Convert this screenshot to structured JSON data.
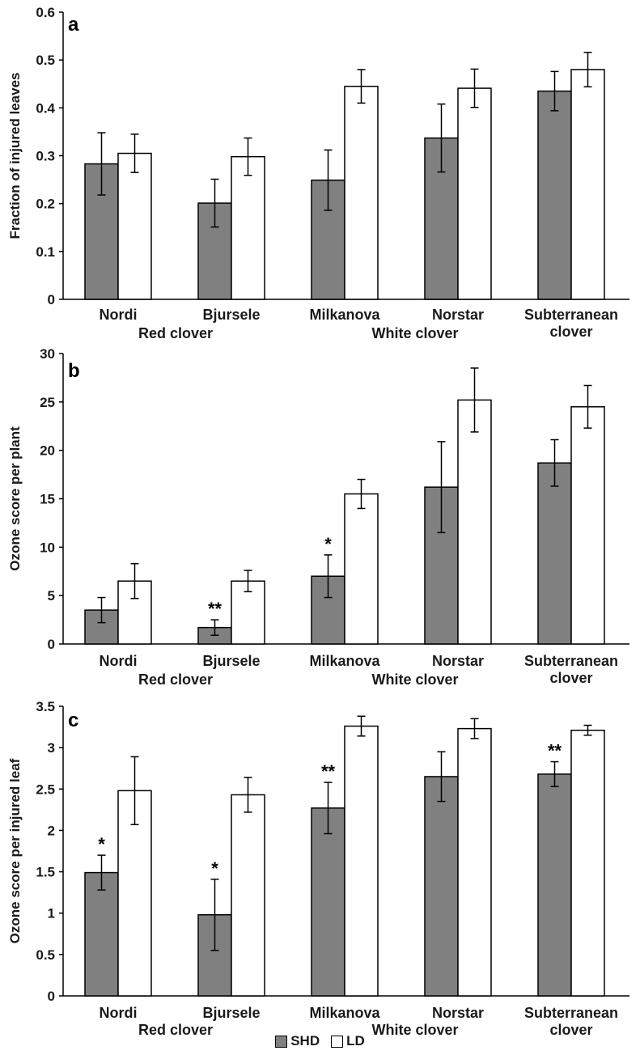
{
  "chart_data": [
    {
      "type": "bar",
      "panel": "a",
      "ylabel": "Fraction of injured leaves",
      "ylim": [
        0,
        0.6
      ],
      "yticks": [
        "0",
        "0.1",
        "0.2",
        "0.3",
        "0.4",
        "0.5",
        "0.6"
      ],
      "categories": [
        "Nordi",
        "Bjursele",
        "Milkanova",
        "Norstar",
        "Subterranean\nclover"
      ],
      "groups": [
        "Red clover",
        "White clover"
      ],
      "series": [
        {
          "name": "SHD",
          "color": "#808080",
          "values": [
            0.283,
            0.201,
            0.249,
            0.337,
            0.435
          ],
          "errors": [
            0.065,
            0.05,
            0.063,
            0.071,
            0.041
          ]
        },
        {
          "name": "LD",
          "color": "#ffffff",
          "values": [
            0.305,
            0.298,
            0.445,
            0.441,
            0.48
          ],
          "errors": [
            0.04,
            0.039,
            0.035,
            0.04,
            0.036
          ]
        }
      ],
      "annotations": [
        "",
        "",
        "",
        "",
        ""
      ]
    },
    {
      "type": "bar",
      "panel": "b",
      "ylabel": "Ozone score per plant",
      "ylim": [
        0,
        30
      ],
      "yticks": [
        "0",
        "5",
        "10",
        "15",
        "20",
        "25",
        "30"
      ],
      "categories": [
        "Nordi",
        "Bjursele",
        "Milkanova",
        "Norstar",
        "Subterranean\nclover"
      ],
      "groups": [
        "Red clover",
        "White clover"
      ],
      "series": [
        {
          "name": "SHD",
          "color": "#808080",
          "values": [
            3.5,
            1.7,
            7.0,
            16.2,
            18.7
          ],
          "errors": [
            1.3,
            0.8,
            2.2,
            4.7,
            2.4
          ]
        },
        {
          "name": "LD",
          "color": "#ffffff",
          "values": [
            6.5,
            6.5,
            15.5,
            25.2,
            24.5
          ],
          "errors": [
            1.8,
            1.1,
            1.5,
            3.3,
            2.2
          ]
        }
      ],
      "annotations": [
        "",
        "**",
        "*",
        "",
        ""
      ]
    },
    {
      "type": "bar",
      "panel": "c",
      "ylabel": "Ozone score per injured leaf",
      "ylim": [
        0,
        3.5
      ],
      "yticks": [
        "0",
        "0.5",
        "1",
        "1.5",
        "2",
        "2.5",
        "3",
        "3.5"
      ],
      "categories": [
        "Nordi",
        "Bjursele",
        "Milkanova",
        "Norstar",
        "Subterranean\nclover"
      ],
      "groups": [
        "Red clover",
        "White clover"
      ],
      "series": [
        {
          "name": "SHD",
          "color": "#808080",
          "values": [
            1.49,
            0.98,
            2.27,
            2.65,
            2.68
          ],
          "errors": [
            0.21,
            0.43,
            0.31,
            0.3,
            0.15
          ]
        },
        {
          "name": "LD",
          "color": "#ffffff",
          "values": [
            2.48,
            2.43,
            3.26,
            3.23,
            3.21
          ],
          "errors": [
            0.41,
            0.21,
            0.12,
            0.12,
            0.06
          ]
        }
      ],
      "annotations": [
        "*",
        "*",
        "**",
        "",
        "**"
      ]
    }
  ],
  "legend": [
    {
      "label": "SHD",
      "color": "#808080"
    },
    {
      "label": "LD",
      "color": "#ffffff"
    }
  ]
}
